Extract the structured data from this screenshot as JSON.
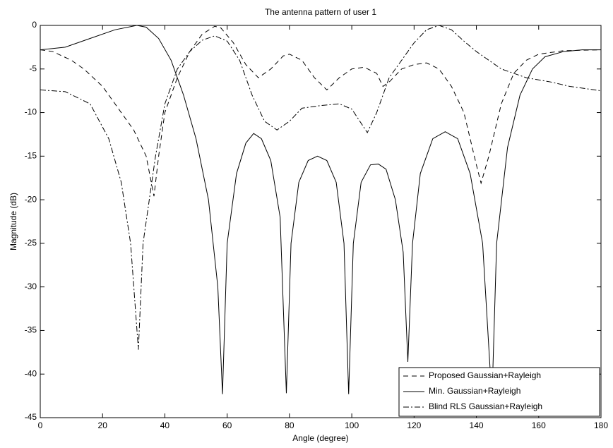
{
  "chart_data": {
    "type": "line",
    "title": "The antenna pattern of user 1",
    "x_label": "Angle (degree)",
    "y_label": "Magnitude (dB)",
    "xlim": [
      0,
      180
    ],
    "xticks": [
      0,
      20,
      40,
      60,
      80,
      100,
      120,
      140,
      160,
      180
    ],
    "ylim": [
      -45,
      0
    ],
    "yticks": [
      0,
      -5,
      -10,
      -15,
      -20,
      -25,
      -30,
      -35,
      -40,
      -45
    ],
    "grid": false,
    "legend": "lower right",
    "series": [
      {
        "name": "Proposed Gaussian+Rayleigh",
        "color": "#000000",
        "style": "dashed",
        "x": [
          0,
          4,
          10,
          14,
          20,
          26,
          30,
          34,
          36.5,
          38,
          40,
          44,
          48,
          52,
          56,
          58,
          62,
          66,
          70,
          74,
          78,
          80,
          84,
          88,
          92,
          96,
          100,
          104,
          108,
          110,
          112,
          116,
          120,
          124,
          128,
          132,
          136,
          140,
          141.5,
          144,
          148,
          152,
          156,
          160,
          168,
          180
        ],
        "values": [
          -2.8,
          -3,
          -4,
          -5,
          -7,
          -10,
          -12,
          -15,
          -19.6,
          -15,
          -10,
          -6,
          -3,
          -1,
          -0.1,
          -0.3,
          -2,
          -4.5,
          -6,
          -5,
          -3.5,
          -3.3,
          -4,
          -6,
          -7.4,
          -6,
          -5,
          -4.8,
          -5.5,
          -7,
          -6.5,
          -5,
          -4.5,
          -4.3,
          -5,
          -7,
          -10,
          -16,
          -18.1,
          -15,
          -9,
          -5.5,
          -4,
          -3.3,
          -2.9,
          -2.8
        ]
      },
      {
        "name": "Min. Gaussian+Rayleigh",
        "color": "#000000",
        "style": "solid",
        "x": [
          0,
          8,
          16,
          24,
          31,
          34,
          38,
          42,
          46,
          50,
          54,
          57,
          58.5,
          60,
          63,
          66,
          68.5,
          71,
          74,
          77,
          79,
          80.5,
          83,
          86,
          89,
          92,
          95,
          97.5,
          99,
          100.5,
          103,
          106,
          108.5,
          111,
          114,
          116.5,
          118,
          119.5,
          122,
          126,
          130,
          134,
          138,
          142,
          145,
          146.5,
          150,
          154,
          158,
          162,
          168,
          174,
          180
        ],
        "values": [
          -2.8,
          -2.5,
          -1.5,
          -0.5,
          0,
          -0.2,
          -1.5,
          -4,
          -8,
          -13,
          -20,
          -30,
          -42.3,
          -25,
          -17,
          -13.5,
          -12.4,
          -13,
          -15.5,
          -22,
          -42.2,
          -25,
          -18,
          -15.5,
          -15,
          -15.5,
          -18,
          -25,
          -42.3,
          -25,
          -18,
          -16,
          -15.9,
          -16.5,
          -20,
          -26,
          -38.6,
          -25,
          -17,
          -13,
          -12.2,
          -13,
          -17,
          -25,
          -43,
          -25,
          -14,
          -8,
          -5,
          -3.6,
          -3,
          -2.8,
          -2.8
        ]
      },
      {
        "name": "Blind RLS Gaussian+Rayleigh",
        "color": "#000000",
        "style": "dashdot",
        "x": [
          0,
          8,
          16,
          22,
          26,
          29,
          31.5,
          33,
          37,
          40,
          44,
          48,
          52,
          56,
          60,
          64,
          68,
          72,
          76,
          80,
          84,
          90,
          96,
          100,
          105,
          108,
          112,
          116,
          120,
          124,
          128,
          132,
          136,
          140,
          144,
          148,
          156,
          164,
          170,
          180
        ],
        "values": [
          -7.4,
          -7.6,
          -9,
          -13,
          -18,
          -25,
          -37.2,
          -25,
          -15,
          -9,
          -5,
          -3,
          -1.7,
          -1.2,
          -1.8,
          -4,
          -8,
          -11,
          -12,
          -11,
          -9.5,
          -9.2,
          -9,
          -9.6,
          -12.3,
          -10,
          -6,
          -4,
          -2,
          -0.5,
          0,
          -0.5,
          -1.8,
          -3,
          -4,
          -5,
          -6,
          -6.5,
          -7,
          -7.5
        ]
      }
    ]
  }
}
